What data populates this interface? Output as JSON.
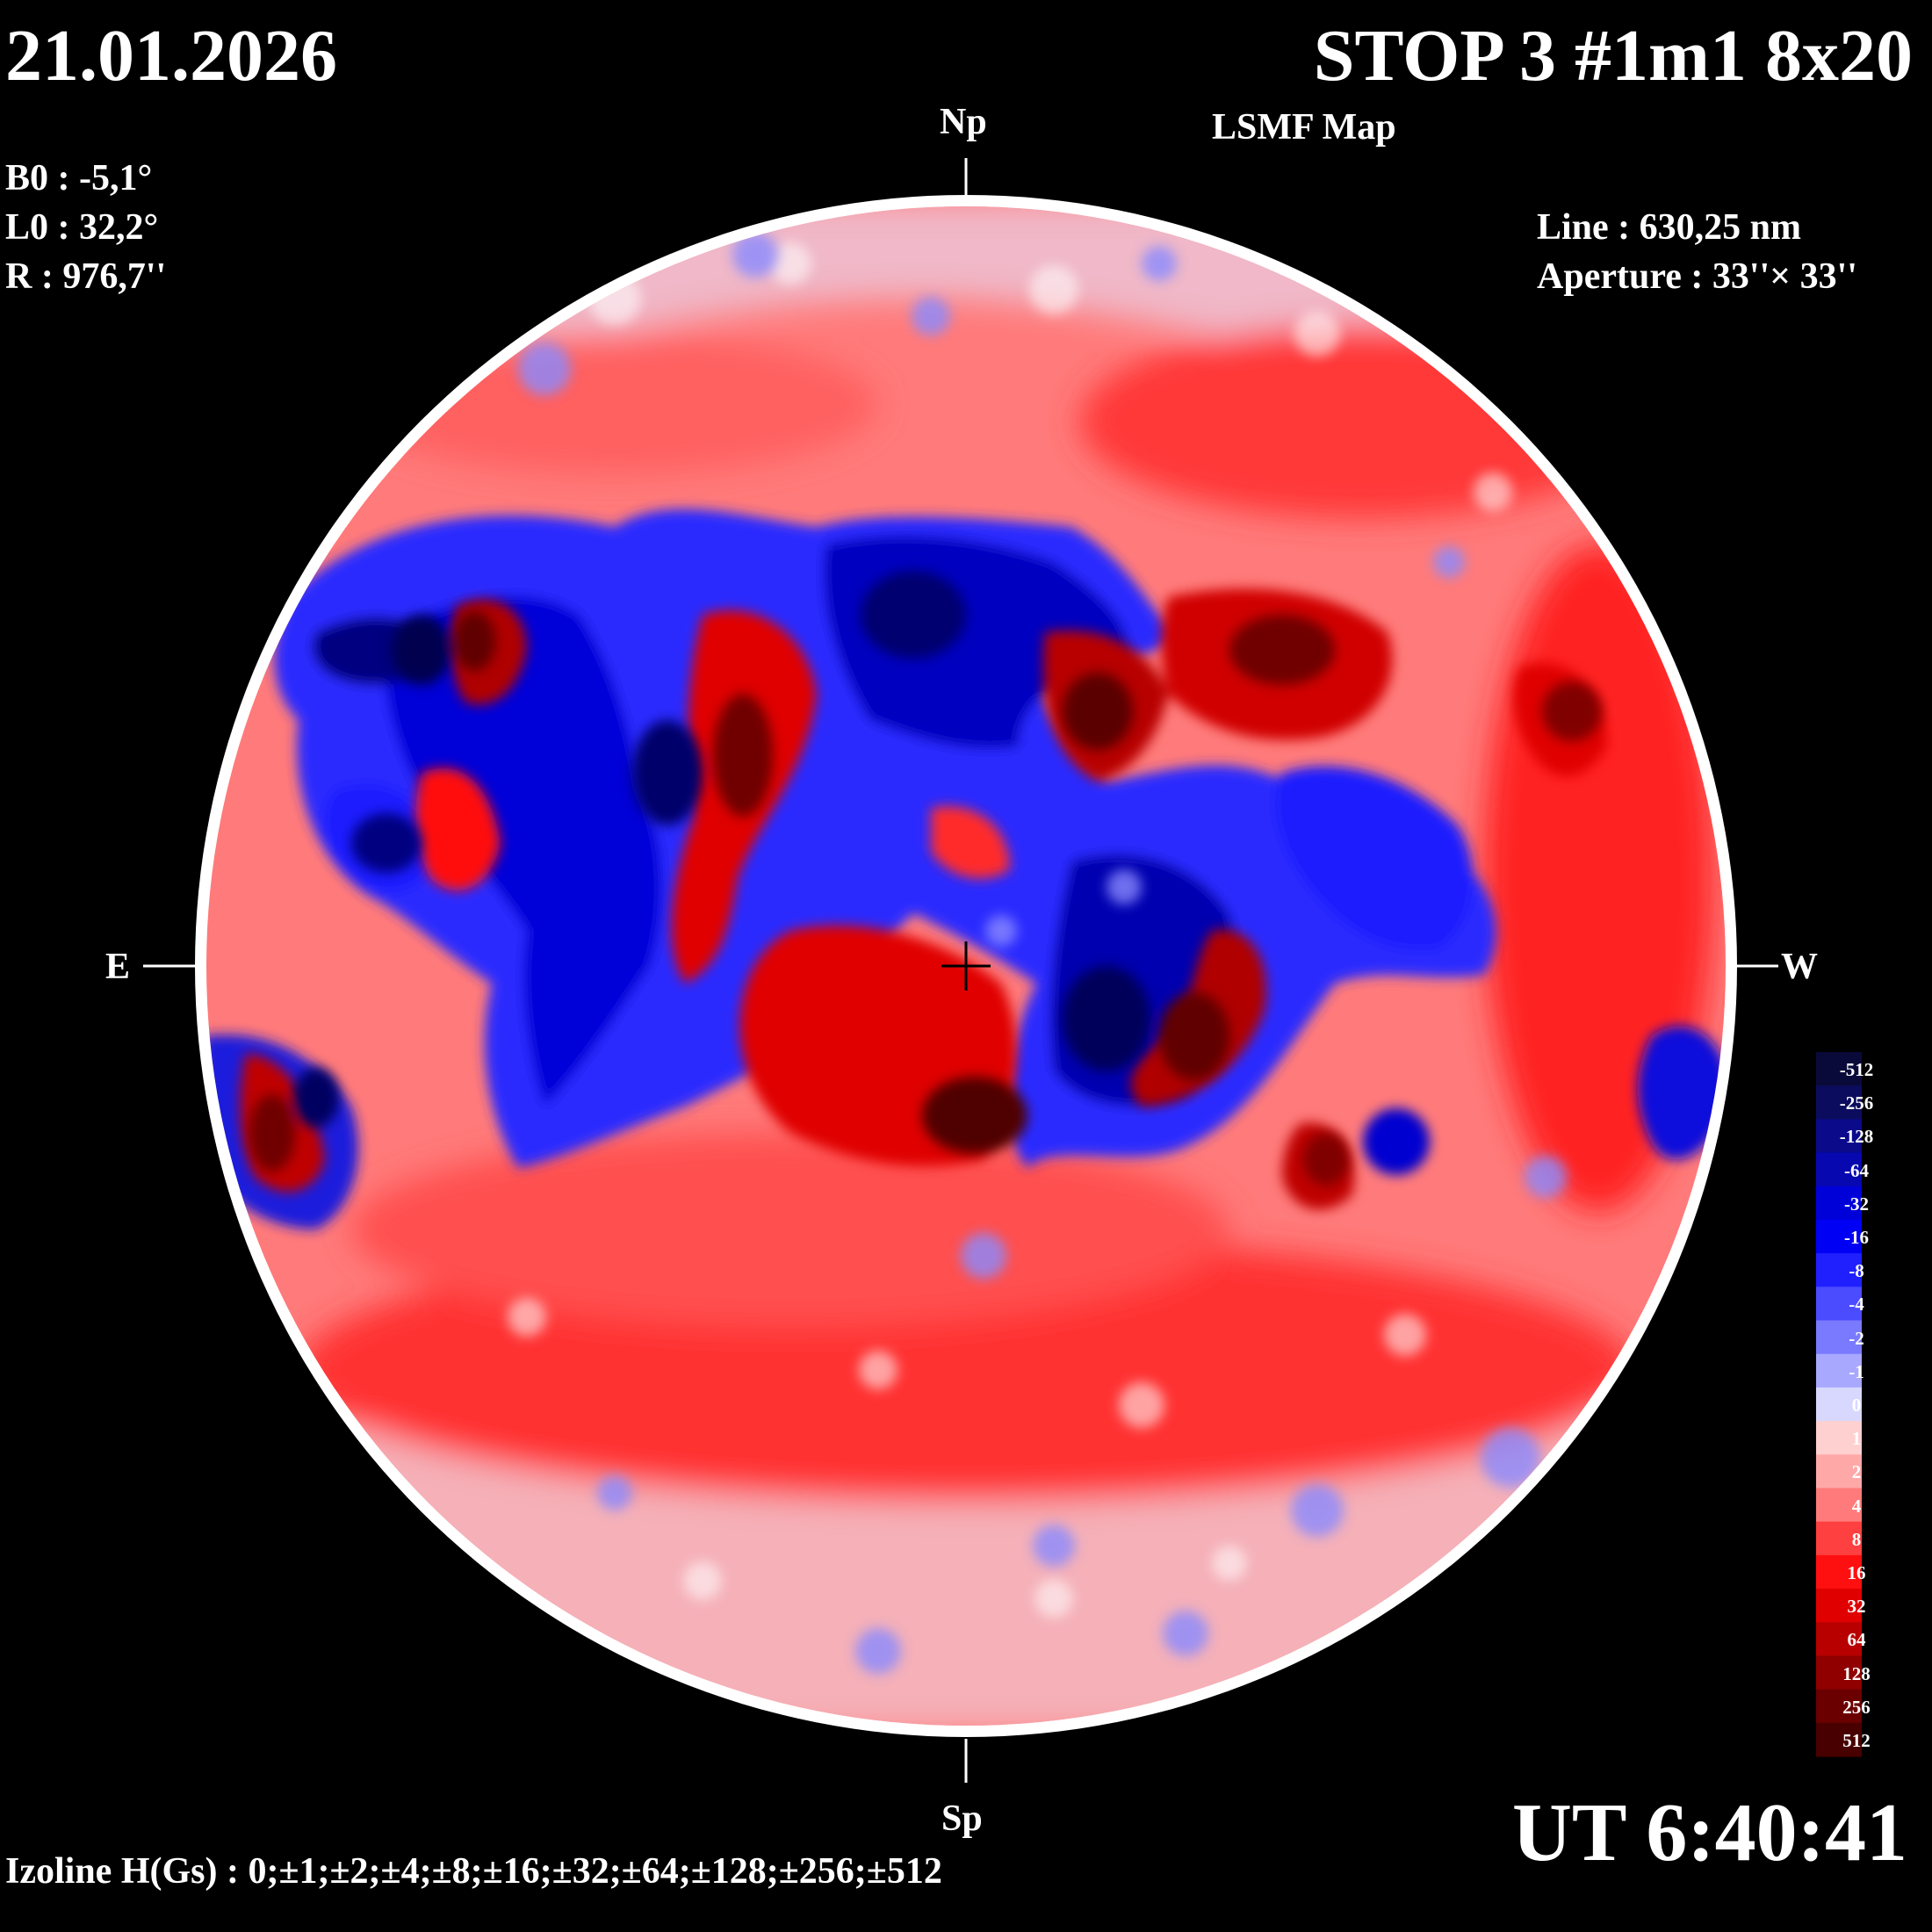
{
  "header": {
    "date": "21.01.2026",
    "title": "STOP 3 #1m1 8x20",
    "subtitle": "LSMF  Map"
  },
  "params": {
    "b0": "B0 : -5,1°",
    "l0": "L0 : 32,2°",
    "r": "R  : 976,7''",
    "line": "Line :  630,25 nm",
    "aperture": "Aperture : 33''× 33''"
  },
  "directions": {
    "north": "Np",
    "south": "Sp",
    "east": "E",
    "west": "W"
  },
  "time": "UT 6:40:41",
  "izoline": "Izoline H(Gs) : 0;±1;±2;±4;±8;±16;±32;±64;±128;±256;±512",
  "colorbar": {
    "levels": [
      "-512",
      "-256",
      "-128",
      "-64",
      "-32",
      "-16",
      "-8",
      "-4",
      "-2",
      "-1",
      "0",
      "1",
      "2",
      "4",
      "8",
      "16",
      "32",
      "64",
      "128",
      "256",
      "512"
    ],
    "colors": [
      "#0a0a3a",
      "#0c0c5e",
      "#0a0a8a",
      "#0808b0",
      "#0000d8",
      "#0000f5",
      "#2020ff",
      "#4c4cff",
      "#7a7aff",
      "#a8a8ff",
      "#d8d8ff",
      "#ffd0d0",
      "#ffa8a8",
      "#ff7a7a",
      "#ff4040",
      "#ff1010",
      "#e00000",
      "#b80000",
      "#900000",
      "#6a0000",
      "#480000"
    ]
  },
  "map": {
    "positive_color": "#ff2a2a",
    "negative_color": "#1414e0",
    "neutral_color": "#f4f0f0"
  }
}
